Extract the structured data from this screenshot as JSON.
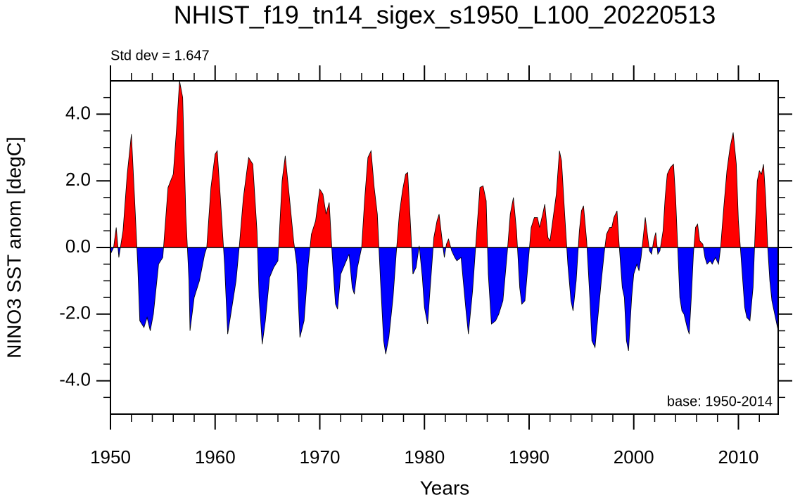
{
  "chart_data": {
    "type": "area",
    "title": "NHIST_f19_tn14_sigex_s1950_L100_20220513",
    "annotation_left": "Std dev = 1.647",
    "annotation_right": "base: 1950-2014",
    "xlabel": "Years",
    "ylabel": "NINO3 SST anom [degC]",
    "positive_color": "#ff0000",
    "negative_color": "#0000ff",
    "xlim": [
      1950,
      2013.8
    ],
    "ylim": [
      -5,
      5
    ],
    "xticks": [
      1950,
      1960,
      1970,
      1980,
      1990,
      2000,
      2010
    ],
    "xminorticks": [
      1952,
      1954,
      1956,
      1958,
      1962,
      1964,
      1966,
      1968,
      1972,
      1974,
      1976,
      1978,
      1982,
      1984,
      1986,
      1988,
      1992,
      1994,
      1996,
      1998,
      2002,
      2004,
      2006,
      2008,
      2012
    ],
    "yticks": [
      {
        "value": -4,
        "label": "-4.0"
      },
      {
        "value": -2,
        "label": "-2.0"
      },
      {
        "value": 0,
        "label": "0.0"
      },
      {
        "value": 2,
        "label": "2.0"
      },
      {
        "value": 4,
        "label": "4.0"
      }
    ],
    "yminorticks": [
      -4.5,
      -3.5,
      -3,
      -2.5,
      -1.5,
      -1,
      -0.5,
      0.5,
      1,
      1.5,
      2.5,
      3,
      3.5,
      4.5
    ],
    "zero_line": true,
    "x": [
      1950.0,
      1950.3,
      1950.55,
      1950.8,
      1951.2,
      1951.6,
      1952.0,
      1952.3,
      1952.6,
      1952.8,
      1953.2,
      1953.5,
      1953.8,
      1954.1,
      1954.6,
      1955.0,
      1955.5,
      1956.0,
      1956.3,
      1956.6,
      1956.9,
      1957.2,
      1957.5,
      1957.6,
      1958.0,
      1958.5,
      1959.0,
      1959.2,
      1959.6,
      1960.0,
      1960.2,
      1960.5,
      1960.9,
      1961.2,
      1961.6,
      1962.0,
      1962.3,
      1962.7,
      1963.2,
      1963.6,
      1964.0,
      1964.2,
      1964.5,
      1964.8,
      1965.2,
      1965.6,
      1966.0,
      1966.4,
      1966.7,
      1967.1,
      1967.5,
      1967.8,
      1968.1,
      1968.5,
      1968.9,
      1969.2,
      1969.6,
      1970.0,
      1970.3,
      1970.6,
      1970.9,
      1971.2,
      1971.5,
      1971.7,
      1972.0,
      1972.4,
      1972.8,
      1973.1,
      1973.3,
      1973.6,
      1974.0,
      1974.3,
      1974.6,
      1974.9,
      1975.2,
      1975.5,
      1975.8,
      1976.1,
      1976.3,
      1976.6,
      1977.0,
      1977.3,
      1977.6,
      1977.9,
      1978.2,
      1978.4,
      1978.7,
      1978.9,
      1979.2,
      1979.5,
      1979.8,
      1980.0,
      1980.3,
      1980.6,
      1980.9,
      1981.2,
      1981.4,
      1981.7,
      1981.9,
      1982.1,
      1982.3,
      1982.6,
      1982.9,
      1983.1,
      1983.5,
      1984.0,
      1984.2,
      1984.6,
      1985.0,
      1985.3,
      1985.6,
      1985.9,
      1986.1,
      1986.4,
      1986.8,
      1987.1,
      1987.5,
      1987.9,
      1988.2,
      1988.5,
      1988.8,
      1989.1,
      1989.3,
      1989.6,
      1989.9,
      1990.2,
      1990.5,
      1990.8,
      1991.0,
      1991.3,
      1991.5,
      1991.8,
      1992.0,
      1992.3,
      1992.6,
      1992.9,
      1993.1,
      1993.4,
      1993.7,
      1994.0,
      1994.2,
      1994.5,
      1994.8,
      1995.0,
      1995.2,
      1995.5,
      1995.8,
      1996.0,
      1996.3,
      1996.6,
      1996.9,
      1997.2,
      1997.4,
      1997.7,
      1997.9,
      1998.1,
      1998.4,
      1998.6,
      1998.9,
      1999.1,
      1999.3,
      1999.5,
      1999.8,
      2000.0,
      2000.3,
      2000.5,
      2000.7,
      2000.9,
      2001.1,
      2001.3,
      2001.5,
      2001.7,
      2001.9,
      2002.1,
      2002.3,
      2002.5,
      2002.8,
      2003.0,
      2003.2,
      2003.5,
      2003.8,
      2004.0,
      2004.2,
      2004.4,
      2004.6,
      2004.8,
      2005.1,
      2005.3,
      2005.5,
      2005.7,
      2005.9,
      2006.1,
      2006.3,
      2006.6,
      2006.8,
      2007.0,
      2007.3,
      2007.5,
      2007.8,
      2008.1,
      2008.3,
      2008.6,
      2008.9,
      2009.2,
      2009.5,
      2009.8,
      2010.0,
      2010.3,
      2010.6,
      2010.8,
      2011.1,
      2011.4,
      2011.6,
      2011.8,
      2012.0,
      2012.2,
      2012.4,
      2012.6,
      2012.8,
      2013.0,
      2013.2,
      2013.4,
      2013.6,
      2013.8
    ],
    "values": [
      -0.2,
      0.0,
      0.6,
      -0.3,
      0.5,
      2.2,
      3.4,
      1.5,
      -0.5,
      -2.2,
      -2.4,
      -2.1,
      -2.5,
      -2.0,
      -0.5,
      -0.3,
      1.8,
      2.2,
      3.5,
      5.0,
      4.5,
      1.0,
      -1.0,
      -2.5,
      -1.5,
      -1.0,
      -0.2,
      0.0,
      1.8,
      2.8,
      2.9,
      1.5,
      -0.5,
      -2.6,
      -1.8,
      -1.0,
      0.0,
      1.5,
      2.7,
      2.5,
      0.5,
      -1.5,
      -2.9,
      -2.2,
      -0.9,
      -0.6,
      -0.4,
      2.0,
      2.75,
      1.5,
      0.2,
      -0.5,
      -2.7,
      -2.2,
      -0.5,
      0.4,
      0.8,
      1.75,
      1.6,
      1.0,
      1.35,
      -0.3,
      -1.7,
      -1.85,
      -0.8,
      -0.5,
      -0.2,
      -1.2,
      -1.4,
      -0.6,
      0.0,
      1.5,
      2.7,
      2.9,
      1.8,
      1.0,
      -1.0,
      -2.8,
      -3.2,
      -2.7,
      -1.5,
      -0.2,
      1.0,
      1.7,
      2.2,
      2.25,
      0.5,
      -0.8,
      -0.6,
      0.05,
      -0.9,
      -1.8,
      -2.3,
      -1.0,
      0.3,
      0.8,
      1.0,
      0.2,
      -0.3,
      0.1,
      0.25,
      -0.1,
      -0.3,
      -0.4,
      -0.3,
      -2.0,
      -2.6,
      -1.3,
      0.5,
      1.8,
      1.85,
      1.4,
      -0.8,
      -2.3,
      -2.2,
      -2.0,
      -1.6,
      -0.2,
      1.0,
      1.5,
      0.5,
      -1.2,
      -1.7,
      -1.6,
      -0.5,
      0.6,
      0.9,
      0.9,
      0.6,
      1.0,
      1.3,
      0.3,
      0.2,
      0.9,
      1.6,
      2.9,
      2.6,
      1.0,
      -0.5,
      -1.6,
      -1.9,
      -1.0,
      0.5,
      1.1,
      1.25,
      0.2,
      -1.5,
      -2.8,
      -3.0,
      -2.0,
      -1.0,
      -0.1,
      0.4,
      0.6,
      0.6,
      0.9,
      1.1,
      0.1,
      -1.2,
      -1.5,
      -2.8,
      -3.1,
      -1.5,
      -0.8,
      -0.5,
      -0.7,
      -0.3,
      0.3,
      0.9,
      0.4,
      -0.1,
      -0.2,
      0.2,
      0.45,
      -0.2,
      -0.1,
      0.5,
      1.5,
      2.2,
      2.4,
      2.5,
      1.5,
      0.0,
      -1.5,
      -1.9,
      -2.0,
      -2.4,
      -2.6,
      -1.5,
      -0.2,
      0.6,
      0.7,
      0.2,
      0.1,
      -0.3,
      -0.5,
      -0.4,
      -0.5,
      -0.3,
      -0.5,
      0.0,
      1.2,
      2.3,
      3.0,
      3.45,
      2.5,
      0.8,
      -0.5,
      -1.8,
      -2.1,
      -2.2,
      -1.2,
      0.5,
      2.0,
      2.3,
      2.2,
      2.5,
      1.5,
      0.0,
      -1.0,
      -1.6,
      -1.9,
      -2.2,
      -2.5
    ]
  }
}
